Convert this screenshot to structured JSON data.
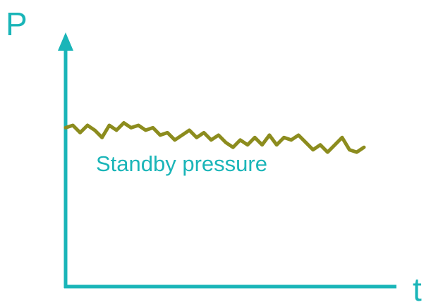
{
  "colors": {
    "axis": "#1ab5b8",
    "line": "#8c8c1e",
    "background": "#ffffff"
  },
  "chart_data": {
    "type": "line",
    "title": "",
    "xlabel": "t",
    "ylabel": "P",
    "grid": false,
    "legend": "none",
    "series": [
      {
        "values": [
          0.65,
          0.66,
          0.63,
          0.66,
          0.64,
          0.61,
          0.66,
          0.64,
          0.67,
          0.65,
          0.66,
          0.64,
          0.65,
          0.62,
          0.63,
          0.6,
          0.62,
          0.64,
          0.61,
          0.63,
          0.6,
          0.62,
          0.59,
          0.57,
          0.6,
          0.58,
          0.61,
          0.58,
          0.62,
          0.58,
          0.61,
          0.6,
          0.62,
          0.59,
          0.56,
          0.58,
          0.55,
          0.58,
          0.61,
          0.56,
          0.55,
          0.57
        ]
      }
    ],
    "annotations": [
      "Standby pressure"
    ]
  }
}
